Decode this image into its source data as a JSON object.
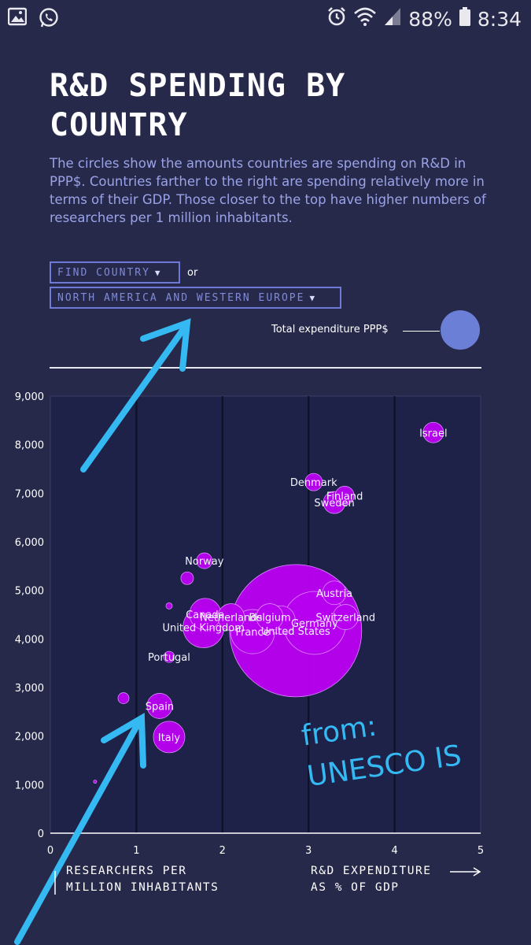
{
  "status_bar": {
    "battery": "88%",
    "time": "8:34",
    "icons": [
      "image-icon",
      "whatsapp-icon",
      "alarm-icon",
      "wifi-icon",
      "signal-icon",
      "battery-icon"
    ]
  },
  "title_line1": "R&D SPENDING BY",
  "title_line2": "COUNTRY",
  "description": "The circles show the amounts countries are spending on R&D in PPP$. Countries farther to the right are spending relatively more in terms of their GDP. Those closer to the top have higher numbers of researchers per 1 million inhabitants.",
  "controls": {
    "find_country": "FIND COUNTRY",
    "or": "or",
    "region": "NORTH AMERICA AND WESTERN EUROPE"
  },
  "legend": {
    "label": "Total expenditure PPP$",
    "color": "#6b7fd6"
  },
  "colors": {
    "bubble": "#b800f0",
    "plot_bg": "#1e2148",
    "page_bg": "#27294a",
    "annotation": "#35b9f2"
  },
  "chart_data": {
    "type": "scatter",
    "x_label": [
      "R&D EXPENDITURE",
      "AS % OF GDP"
    ],
    "y_label": [
      "RESEARCHERS PER",
      "MILLION INHABITANTS"
    ],
    "xlim": [
      0,
      5
    ],
    "ylim": [
      0,
      9000
    ],
    "x_ticks": [
      "0",
      "1",
      "2",
      "3",
      "4",
      "5"
    ],
    "y_ticks": [
      "0",
      "1,000",
      "2,000",
      "3,000",
      "4,000",
      "5,000",
      "6,000",
      "7,000",
      "8,000",
      "9,000"
    ],
    "grid_x": true,
    "points": [
      {
        "label": "Israel",
        "x": 4.45,
        "y": 8250,
        "size": 13
      },
      {
        "label": "Denmark",
        "x": 3.06,
        "y": 7230,
        "size": 11
      },
      {
        "label": "Finland",
        "x": 3.42,
        "y": 6950,
        "size": 12
      },
      {
        "label": "Sweden",
        "x": 3.3,
        "y": 6810,
        "size": 14
      },
      {
        "label": "Norway",
        "x": 1.79,
        "y": 5610,
        "size": 10
      },
      {
        "label": "",
        "x": 1.59,
        "y": 5250,
        "size": 8
      },
      {
        "label": "",
        "x": 1.38,
        "y": 4680,
        "size": 4
      },
      {
        "label": "Austria",
        "x": 3.3,
        "y": 4950,
        "size": 15
      },
      {
        "label": "Canada",
        "x": 1.8,
        "y": 4510,
        "size": 20
      },
      {
        "label": "Netherlands",
        "x": 2.1,
        "y": 4450,
        "size": 17
      },
      {
        "label": "Belgium",
        "x": 2.55,
        "y": 4450,
        "size": 17
      },
      {
        "label": "",
        "x": 2.68,
        "y": 4390,
        "size": 18
      },
      {
        "label": "Switzerland",
        "x": 3.43,
        "y": 4450,
        "size": 16
      },
      {
        "label": "United Kingdom",
        "x": 1.78,
        "y": 4240,
        "size": 26
      },
      {
        "label": "France",
        "x": 2.35,
        "y": 4150,
        "size": 28
      },
      {
        "label": "Germany",
        "x": 3.07,
        "y": 4330,
        "size": 40
      },
      {
        "label": "United States",
        "x": 2.85,
        "y": 4170,
        "size": 84
      },
      {
        "label": "Portugal",
        "x": 1.38,
        "y": 3630,
        "size": 7
      },
      {
        "label": "",
        "x": 0.85,
        "y": 2780,
        "size": 7
      },
      {
        "label": "Spain",
        "x": 1.27,
        "y": 2620,
        "size": 16
      },
      {
        "label": "Italy",
        "x": 1.38,
        "y": 1980,
        "size": 20
      },
      {
        "label": "",
        "x": 0.52,
        "y": 1060,
        "size": 2
      }
    ]
  },
  "annotation": {
    "line1": "from:",
    "line2": "UNESCO IS"
  }
}
